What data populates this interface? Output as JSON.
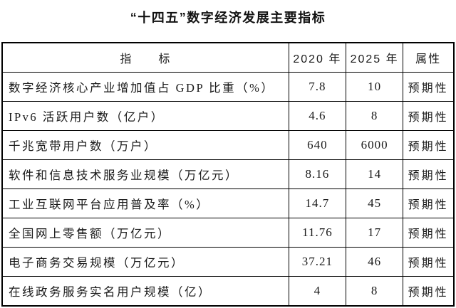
{
  "title": "“十四五”数字经济发展主要指标",
  "colors": {
    "background": "#ffffff",
    "text": "#1a1a1a",
    "border": "#000000"
  },
  "table": {
    "columns": [
      "指　　标",
      "2020 年",
      "2025 年",
      "属性"
    ],
    "rows": [
      {
        "indicator": "数字经济核心产业增加值占 GDP 比重（%）",
        "y2020": "7.8",
        "y2025": "10",
        "attribute": "预期性"
      },
      {
        "indicator": "IPv6 活跃用户数（亿户）",
        "y2020": "4.6",
        "y2025": "8",
        "attribute": "预期性"
      },
      {
        "indicator": "千兆宽带用户数（万户）",
        "y2020": "640",
        "y2025": "6000",
        "attribute": "预期性"
      },
      {
        "indicator": "软件和信息技术服务业规模（万亿元）",
        "y2020": "8.16",
        "y2025": "14",
        "attribute": "预期性"
      },
      {
        "indicator": "工业互联网平台应用普及率（%）",
        "y2020": "14.7",
        "y2025": "45",
        "attribute": "预期性"
      },
      {
        "indicator": "全国网上零售额（万亿元）",
        "y2020": "11.76",
        "y2025": "17",
        "attribute": "预期性"
      },
      {
        "indicator": "电子商务交易规模（万亿元）",
        "y2020": "37.21",
        "y2025": "46",
        "attribute": "预期性"
      },
      {
        "indicator": "在线政务服务实名用户规模（亿）",
        "y2020": "4",
        "y2025": "8",
        "attribute": "预期性"
      }
    ]
  }
}
